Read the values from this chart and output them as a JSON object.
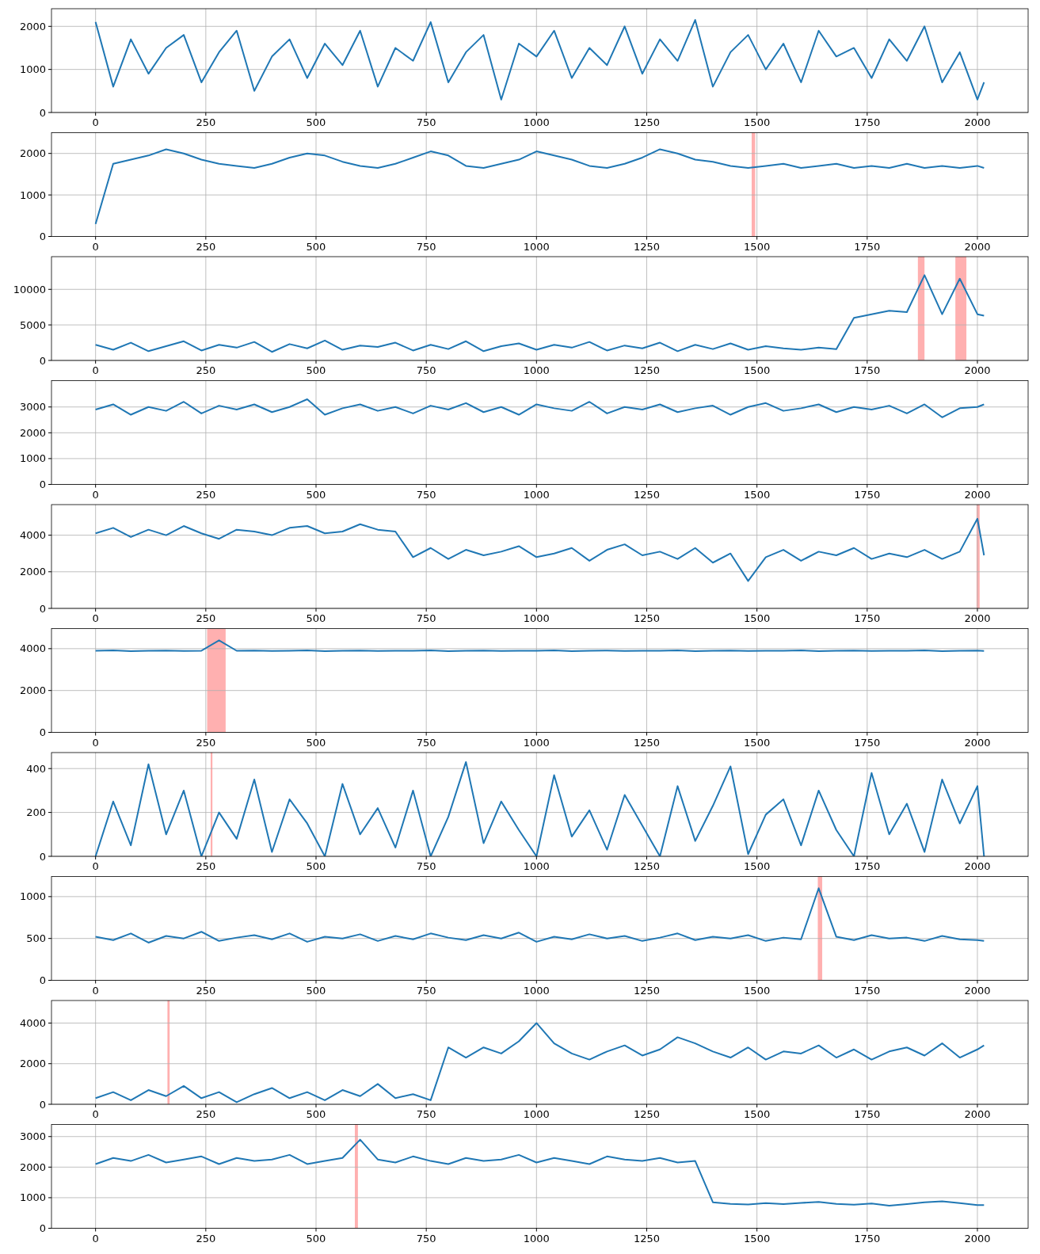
{
  "chart_data": [
    {
      "type": "line",
      "x": [
        0,
        40,
        80,
        120,
        160,
        200,
        240,
        280,
        320,
        360,
        400,
        440,
        480,
        520,
        560,
        600,
        640,
        680,
        720,
        760,
        800,
        840,
        880,
        920,
        960,
        1000,
        1040,
        1080,
        1120,
        1160,
        1200,
        1240,
        1280,
        1320,
        1360,
        1400,
        1440,
        1480,
        1520,
        1560,
        1600,
        1640,
        1680,
        1720,
        1760,
        1800,
        1840,
        1880,
        1920,
        1960,
        2000,
        2015
      ],
      "series": [
        {
          "color": "#1f77b4",
          "values": [
            2100,
            600,
            1700,
            900,
            1500,
            1800,
            700,
            1400,
            1900,
            500,
            1300,
            1700,
            800,
            1600,
            1100,
            1900,
            600,
            1500,
            1200,
            2100,
            700,
            1400,
            1800,
            300,
            1600,
            1300,
            1900,
            800,
            1500,
            1100,
            2000,
            900,
            1700,
            1200,
            2150,
            600,
            1400,
            1800,
            1000,
            1600,
            700,
            1900,
            1300,
            1500,
            800,
            1700,
            1200,
            2000,
            700,
            1400,
            300,
            700
          ]
        }
      ],
      "xlim": [
        -100,
        2115
      ],
      "ylim": [
        0,
        2410
      ],
      "xticks": [
        0,
        250,
        500,
        750,
        1000,
        1250,
        1500,
        1750,
        2000
      ],
      "yticks": [
        0,
        1000,
        2000
      ],
      "grid": true
    },
    {
      "type": "line",
      "x": [
        0,
        40,
        80,
        120,
        160,
        200,
        240,
        280,
        320,
        360,
        400,
        440,
        480,
        520,
        560,
        600,
        640,
        680,
        720,
        760,
        800,
        840,
        880,
        920,
        960,
        1000,
        1040,
        1080,
        1120,
        1160,
        1200,
        1240,
        1280,
        1320,
        1360,
        1400,
        1440,
        1480,
        1520,
        1560,
        1600,
        1640,
        1680,
        1720,
        1760,
        1800,
        1840,
        1880,
        1920,
        1960,
        2000,
        2015
      ],
      "series": [
        {
          "color": "#1f77b4",
          "values": [
            300,
            1750,
            1850,
            1950,
            2100,
            2000,
            1850,
            1750,
            1700,
            1650,
            1750,
            1900,
            2000,
            1950,
            1800,
            1700,
            1650,
            1750,
            1900,
            2050,
            1950,
            1700,
            1650,
            1750,
            1850,
            2050,
            1950,
            1850,
            1700,
            1650,
            1750,
            1900,
            2100,
            2000,
            1850,
            1800,
            1700,
            1650,
            1700,
            1750,
            1650,
            1700,
            1750,
            1650,
            1700,
            1650,
            1750,
            1650,
            1700,
            1650,
            1700,
            1650
          ]
        }
      ],
      "xlim": [
        -100,
        2115
      ],
      "ylim": [
        0,
        2500
      ],
      "xticks": [
        0,
        250,
        500,
        750,
        1000,
        1250,
        1500,
        1750,
        2000
      ],
      "yticks": [
        0,
        1000,
        2000
      ],
      "grid": true,
      "bands": [
        {
          "axis": "x",
          "from": 1488,
          "to": 1496,
          "color": "#ffb0b0"
        }
      ]
    },
    {
      "type": "line",
      "x": [
        0,
        40,
        80,
        120,
        160,
        200,
        240,
        280,
        320,
        360,
        400,
        440,
        480,
        520,
        560,
        600,
        640,
        680,
        720,
        760,
        800,
        840,
        880,
        920,
        960,
        1000,
        1040,
        1080,
        1120,
        1160,
        1200,
        1240,
        1280,
        1320,
        1360,
        1400,
        1440,
        1480,
        1520,
        1560,
        1600,
        1640,
        1680,
        1720,
        1760,
        1800,
        1840,
        1880,
        1920,
        1960,
        2000,
        2015
      ],
      "series": [
        {
          "color": "#1f77b4",
          "values": [
            2200,
            1500,
            2500,
            1300,
            2000,
            2700,
            1400,
            2200,
            1800,
            2600,
            1200,
            2300,
            1700,
            2800,
            1500,
            2100,
            1900,
            2500,
            1400,
            2200,
            1600,
            2700,
            1300,
            2000,
            2400,
            1500,
            2200,
            1800,
            2600,
            1400,
            2100,
            1700,
            2500,
            1300,
            2200,
            1600,
            2400,
            1500,
            2000,
            1700,
            1500,
            1800,
            1600,
            6000,
            6500,
            7000,
            6800,
            12000,
            6500,
            11500,
            6500,
            6300
          ]
        }
      ],
      "xlim": [
        -100,
        2115
      ],
      "ylim": [
        0,
        14600
      ],
      "xticks": [
        0,
        250,
        500,
        750,
        1000,
        1250,
        1500,
        1750,
        2000
      ],
      "yticks": [
        0,
        5000,
        10000
      ],
      "grid": true,
      "bands": [
        {
          "axis": "x",
          "from": 1865,
          "to": 1880,
          "color": "#ffb0b0"
        },
        {
          "axis": "x",
          "from": 1950,
          "to": 1975,
          "color": "#ffb0b0"
        }
      ]
    },
    {
      "type": "line",
      "x": [
        0,
        40,
        80,
        120,
        160,
        200,
        240,
        280,
        320,
        360,
        400,
        440,
        480,
        520,
        560,
        600,
        640,
        680,
        720,
        760,
        800,
        840,
        880,
        920,
        960,
        1000,
        1040,
        1080,
        1120,
        1160,
        1200,
        1240,
        1280,
        1320,
        1360,
        1400,
        1440,
        1480,
        1520,
        1560,
        1600,
        1640,
        1680,
        1720,
        1760,
        1800,
        1840,
        1880,
        1920,
        1960,
        2000,
        2015
      ],
      "series": [
        {
          "color": "#1f77b4",
          "values": [
            2900,
            3100,
            2700,
            3000,
            2850,
            3200,
            2750,
            3050,
            2900,
            3100,
            2800,
            3000,
            3300,
            2700,
            2950,
            3100,
            2850,
            3000,
            2750,
            3050,
            2900,
            3150,
            2800,
            3000,
            2700,
            3100,
            2950,
            2850,
            3200,
            2750,
            3000,
            2900,
            3100,
            2800,
            2950,
            3050,
            2700,
            3000,
            3150,
            2850,
            2950,
            3100,
            2800,
            3000,
            2900,
            3050,
            2750,
            3100,
            2600,
            2950,
            3000,
            3100
          ]
        }
      ],
      "xlim": [
        -100,
        2115
      ],
      "ylim": [
        0,
        4020
      ],
      "xticks": [
        0,
        250,
        500,
        750,
        1000,
        1250,
        1500,
        1750,
        2000
      ],
      "yticks": [
        0,
        1000,
        2000,
        3000
      ],
      "grid": true
    },
    {
      "type": "line",
      "x": [
        0,
        40,
        80,
        120,
        160,
        200,
        240,
        280,
        320,
        360,
        400,
        440,
        480,
        520,
        560,
        600,
        640,
        680,
        720,
        760,
        800,
        840,
        880,
        920,
        960,
        1000,
        1040,
        1080,
        1120,
        1160,
        1200,
        1240,
        1280,
        1320,
        1360,
        1400,
        1440,
        1480,
        1520,
        1560,
        1600,
        1640,
        1680,
        1720,
        1760,
        1800,
        1840,
        1880,
        1920,
        1960,
        2000,
        2015
      ],
      "series": [
        {
          "color": "#1f77b4",
          "values": [
            4100,
            4400,
            3900,
            4300,
            4000,
            4500,
            4100,
            3800,
            4300,
            4200,
            4000,
            4400,
            4500,
            4100,
            4200,
            4600,
            4300,
            4200,
            2800,
            3300,
            2700,
            3200,
            2900,
            3100,
            3400,
            2800,
            3000,
            3300,
            2600,
            3200,
            3500,
            2900,
            3100,
            2700,
            3300,
            2500,
            3000,
            1500,
            2800,
            3200,
            2600,
            3100,
            2900,
            3300,
            2700,
            3000,
            2800,
            3200,
            2700,
            3100,
            4900,
            2900
          ]
        }
      ],
      "xlim": [
        -100,
        2115
      ],
      "ylim": [
        0,
        5670
      ],
      "xticks": [
        0,
        250,
        500,
        750,
        1000,
        1250,
        1500,
        1750,
        2000
      ],
      "yticks": [
        0,
        2000,
        4000
      ],
      "grid": true,
      "bands": [
        {
          "axis": "x",
          "from": 1998,
          "to": 2005,
          "color": "#ffb0b0"
        }
      ]
    },
    {
      "type": "line",
      "x": [
        0,
        40,
        80,
        120,
        160,
        200,
        240,
        280,
        320,
        360,
        400,
        440,
        480,
        520,
        560,
        600,
        640,
        680,
        720,
        760,
        800,
        840,
        880,
        920,
        960,
        1000,
        1040,
        1080,
        1120,
        1160,
        1200,
        1240,
        1280,
        1320,
        1360,
        1400,
        1440,
        1480,
        1520,
        1560,
        1600,
        1640,
        1680,
        1720,
        1760,
        1800,
        1840,
        1880,
        1920,
        1960,
        2000,
        2015
      ],
      "series": [
        {
          "color": "#1f77b4",
          "values": [
            3900,
            3920,
            3880,
            3900,
            3910,
            3890,
            3900,
            4400,
            3900,
            3910,
            3890,
            3900,
            3920,
            3880,
            3900,
            3910,
            3890,
            3900,
            3900,
            3920,
            3880,
            3900,
            3910,
            3890,
            3900,
            3900,
            3920,
            3880,
            3900,
            3910,
            3890,
            3900,
            3900,
            3920,
            3880,
            3900,
            3910,
            3890,
            3900,
            3900,
            3920,
            3880,
            3900,
            3910,
            3890,
            3900,
            3900,
            3920,
            3880,
            3900,
            3910,
            3890
          ]
        }
      ],
      "xlim": [
        -100,
        2115
      ],
      "ylim": [
        0,
        4960
      ],
      "xticks": [
        0,
        250,
        500,
        750,
        1000,
        1250,
        1500,
        1750,
        2000
      ],
      "yticks": [
        0,
        2000,
        4000
      ],
      "grid": true,
      "bands": [
        {
          "axis": "x",
          "from": 253,
          "to": 295,
          "color": "#ffb0b0"
        }
      ]
    },
    {
      "type": "line",
      "x": [
        0,
        40,
        80,
        120,
        160,
        200,
        240,
        280,
        320,
        360,
        400,
        440,
        480,
        520,
        560,
        600,
        640,
        680,
        720,
        760,
        800,
        840,
        880,
        920,
        960,
        1000,
        1040,
        1080,
        1120,
        1160,
        1200,
        1240,
        1280,
        1320,
        1360,
        1400,
        1440,
        1480,
        1520,
        1560,
        1600,
        1640,
        1680,
        1720,
        1760,
        1800,
        1840,
        1880,
        1920,
        1960,
        2000,
        2015
      ],
      "series": [
        {
          "color": "#1f77b4",
          "values": [
            0,
            250,
            50,
            420,
            100,
            300,
            0,
            200,
            80,
            350,
            20,
            260,
            150,
            0,
            330,
            100,
            220,
            40,
            300,
            0,
            180,
            430,
            60,
            250,
            120,
            0,
            370,
            90,
            210,
            30,
            280,
            140,
            0,
            320,
            70,
            230,
            410,
            10,
            190,
            260,
            50,
            300,
            120,
            0,
            380,
            100,
            240,
            20,
            350,
            150,
            320,
            0
          ]
        }
      ],
      "xlim": [
        -100,
        2115
      ],
      "ylim": [
        0,
        473
      ],
      "xticks": [
        0,
        250,
        500,
        750,
        1000,
        1250,
        1500,
        1750,
        2000
      ],
      "yticks": [
        0,
        200,
        400
      ],
      "grid": true,
      "bands": [
        {
          "axis": "x",
          "from": 261,
          "to": 265,
          "color": "#ffb0b0"
        }
      ]
    },
    {
      "type": "line",
      "x": [
        0,
        40,
        80,
        120,
        160,
        200,
        240,
        280,
        320,
        360,
        400,
        440,
        480,
        520,
        560,
        600,
        640,
        680,
        720,
        760,
        800,
        840,
        880,
        920,
        960,
        1000,
        1040,
        1080,
        1120,
        1160,
        1200,
        1240,
        1280,
        1320,
        1360,
        1400,
        1440,
        1480,
        1520,
        1560,
        1600,
        1640,
        1680,
        1720,
        1760,
        1800,
        1840,
        1880,
        1920,
        1960,
        2000,
        2015
      ],
      "series": [
        {
          "color": "#1f77b4",
          "values": [
            520,
            480,
            560,
            450,
            530,
            500,
            580,
            470,
            510,
            540,
            490,
            560,
            460,
            520,
            500,
            550,
            470,
            530,
            490,
            560,
            510,
            480,
            540,
            500,
            570,
            460,
            520,
            490,
            550,
            500,
            530,
            470,
            510,
            560,
            480,
            520,
            500,
            540,
            470,
            510,
            490,
            1100,
            520,
            480,
            540,
            500,
            510,
            470,
            530,
            490,
            480,
            470
          ]
        }
      ],
      "xlim": [
        -100,
        2115
      ],
      "ylim": [
        0,
        1240
      ],
      "xticks": [
        0,
        250,
        500,
        750,
        1000,
        1250,
        1500,
        1750,
        2000
      ],
      "yticks": [
        0,
        500,
        1000
      ],
      "grid": true,
      "bands": [
        {
          "axis": "x",
          "from": 1638,
          "to": 1648,
          "color": "#ffb0b0"
        }
      ]
    },
    {
      "type": "line",
      "x": [
        0,
        40,
        80,
        120,
        160,
        200,
        240,
        280,
        320,
        360,
        400,
        440,
        480,
        520,
        560,
        600,
        640,
        680,
        720,
        760,
        800,
        840,
        880,
        920,
        960,
        1000,
        1040,
        1080,
        1120,
        1160,
        1200,
        1240,
        1280,
        1320,
        1360,
        1400,
        1440,
        1480,
        1520,
        1560,
        1600,
        1640,
        1680,
        1720,
        1760,
        1800,
        1840,
        1880,
        1920,
        1960,
        2000,
        2015
      ],
      "series": [
        {
          "color": "#1f77b4",
          "values": [
            300,
            600,
            200,
            700,
            400,
            900,
            300,
            600,
            100,
            500,
            800,
            300,
            600,
            200,
            700,
            400,
            1000,
            300,
            500,
            200,
            2800,
            2300,
            2800,
            2500,
            3100,
            4000,
            3000,
            2500,
            2200,
            2600,
            2900,
            2400,
            2700,
            3300,
            3000,
            2600,
            2300,
            2800,
            2200,
            2600,
            2500,
            2900,
            2300,
            2700,
            2200,
            2600,
            2800,
            2400,
            3000,
            2300,
            2700,
            2900
          ]
        }
      ],
      "xlim": [
        -100,
        2115
      ],
      "ylim": [
        0,
        5110
      ],
      "xticks": [
        0,
        250,
        500,
        750,
        1000,
        1250,
        1500,
        1750,
        2000
      ],
      "yticks": [
        0,
        2000,
        4000
      ],
      "grid": true,
      "bands": [
        {
          "axis": "x",
          "from": 163,
          "to": 168,
          "color": "#ffb0b0"
        }
      ]
    },
    {
      "type": "line",
      "x": [
        0,
        40,
        80,
        120,
        160,
        200,
        240,
        280,
        320,
        360,
        400,
        440,
        480,
        520,
        560,
        600,
        640,
        680,
        720,
        760,
        800,
        840,
        880,
        920,
        960,
        1000,
        1040,
        1080,
        1120,
        1160,
        1200,
        1240,
        1280,
        1320,
        1360,
        1400,
        1440,
        1480,
        1520,
        1560,
        1600,
        1640,
        1680,
        1720,
        1760,
        1800,
        1840,
        1880,
        1920,
        1960,
        2000,
        2015
      ],
      "series": [
        {
          "color": "#1f77b4",
          "values": [
            2100,
            2300,
            2200,
            2400,
            2150,
            2250,
            2350,
            2100,
            2300,
            2200,
            2250,
            2400,
            2100,
            2200,
            2300,
            2900,
            2250,
            2150,
            2350,
            2200,
            2100,
            2300,
            2200,
            2250,
            2400,
            2150,
            2300,
            2200,
            2100,
            2350,
            2250,
            2200,
            2300,
            2150,
            2200,
            850,
            800,
            780,
            820,
            790,
            830,
            860,
            800,
            770,
            810,
            740,
            790,
            850,
            880,
            820,
            760,
            760
          ]
        }
      ],
      "xlim": [
        -100,
        2115
      ],
      "ylim": [
        0,
        3395
      ],
      "xticks": [
        0,
        250,
        500,
        750,
        1000,
        1250,
        1500,
        1750,
        2000
      ],
      "yticks": [
        0,
        1000,
        2000,
        3000
      ],
      "grid": true,
      "bands": [
        {
          "axis": "x",
          "from": 588,
          "to": 595,
          "color": "#ffb0b0"
        }
      ]
    }
  ]
}
